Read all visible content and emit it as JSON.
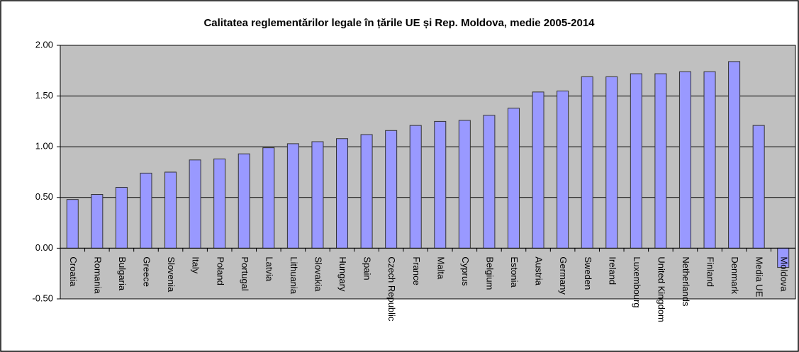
{
  "chart_data": {
    "type": "bar",
    "title": "Calitatea reglementărilor legale în țările UE și Rep. Moldova,  medie 2005-2014",
    "categories": [
      "Croatia",
      "Romania",
      "Bulgaria",
      "Greece",
      "Slovenia",
      "Italy",
      "Poland",
      "Portugal",
      "Latvia",
      "Lithuania",
      "Slovakia",
      "Hungary",
      "Spain",
      "Czech Republic",
      "France",
      "Malta",
      "Cyprus",
      "Belgium",
      "Estonia",
      "Austria",
      "Germany",
      "Sweden",
      "Ireland",
      "Luxembourg",
      "United Kingdom",
      "Netherlands",
      "Finland",
      "Denmark",
      "Media UE",
      "Moldova"
    ],
    "values": [
      0.48,
      0.53,
      0.6,
      0.74,
      0.75,
      0.87,
      0.88,
      0.93,
      0.99,
      1.03,
      1.05,
      1.08,
      1.12,
      1.16,
      1.21,
      1.25,
      1.26,
      1.31,
      1.38,
      1.54,
      1.55,
      1.69,
      1.69,
      1.72,
      1.72,
      1.74,
      1.74,
      1.84,
      1.21,
      -0.19
    ],
    "color": "#9999ff",
    "ylim": [
      -0.5,
      2.0
    ],
    "yticks": [
      {
        "value": -0.5,
        "label": "-0.50"
      },
      {
        "value": 0,
        "label": "0.00"
      },
      {
        "value": 0.5,
        "label": "0.50"
      },
      {
        "value": 1.0,
        "label": "1.00"
      },
      {
        "value": 1.5,
        "label": "1.50"
      },
      {
        "value": 2.0,
        "label": "2.00"
      }
    ],
    "grid": true
  }
}
